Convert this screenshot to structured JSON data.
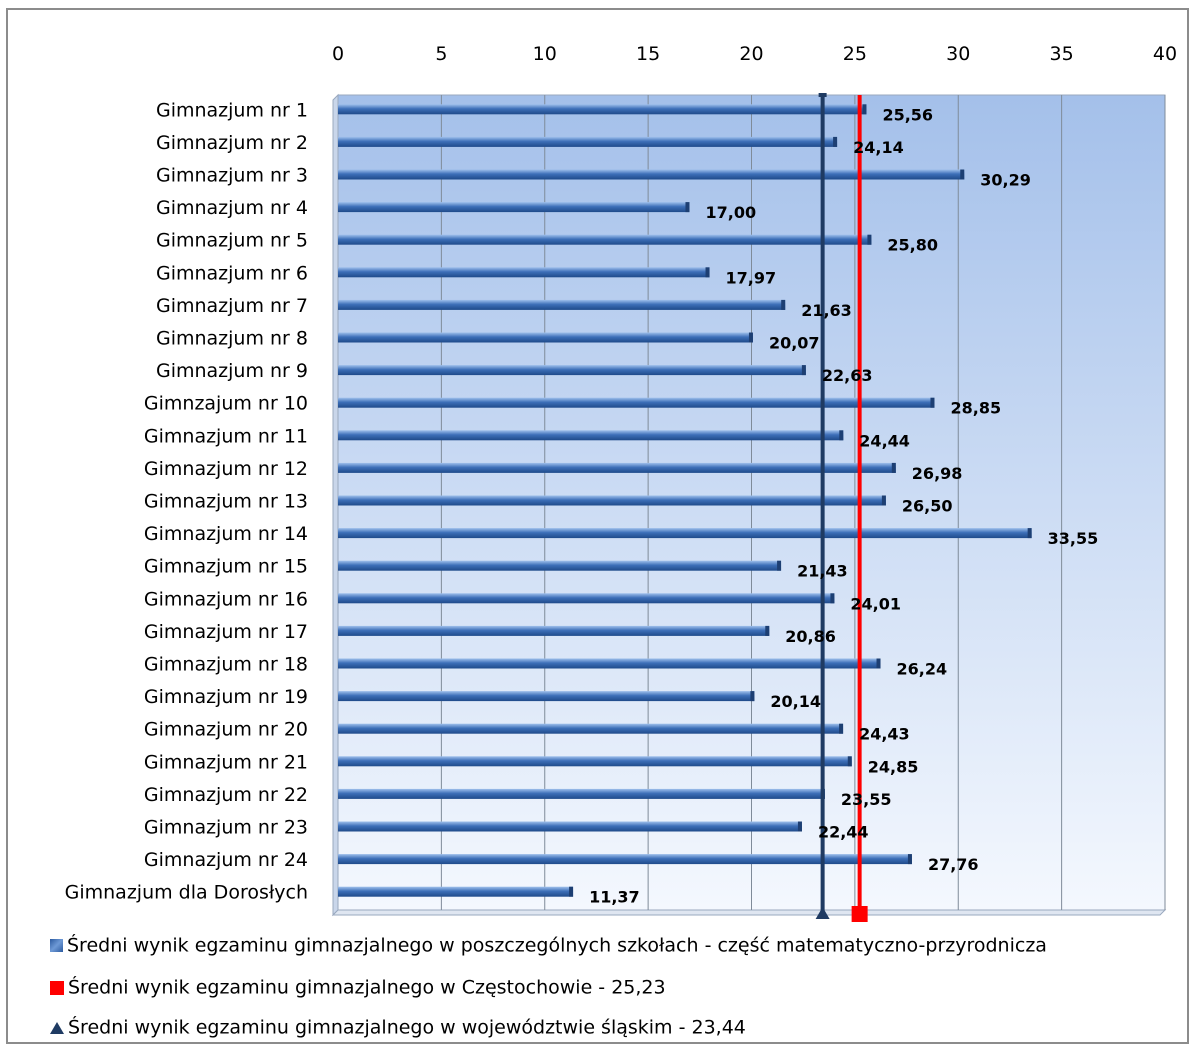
{
  "chart_data": {
    "type": "bar",
    "orientation": "horizontal",
    "categories": [
      "Gimnazjum nr 1",
      "Gimnazjum nr 2",
      "Gimnazjum nr 3",
      "Gimnazjum nr 4",
      "Gimnazjum nr 5",
      "Gimnazjum nr 6",
      "Gimnazjum nr 7",
      "Gimnazjum nr 8",
      "Gimnazjum nr 9",
      "Gimnzajum nr 10",
      "Gimnazjum nr 11",
      "Gimnazjum nr 12",
      "Gimnazjum nr 13",
      "Gimnazjum nr 14",
      "Gimnazjum nr 15",
      "Gimnazjum nr 16",
      "Gimnazjum nr 17",
      "Gimnazjum nr 18",
      "Gimnazjum nr 19",
      "Gimnazjum nr 20",
      "Gimnazjum nr 21",
      "Gimnazjum nr 22",
      "Gimnazjum nr 23",
      "Gimnazjum nr 24",
      "Gimnazjum dla Dorosłych"
    ],
    "values": [
      25.56,
      24.14,
      30.29,
      17.0,
      25.8,
      17.97,
      21.63,
      20.07,
      22.63,
      28.85,
      24.44,
      26.98,
      26.5,
      33.55,
      21.43,
      24.01,
      20.86,
      26.24,
      20.14,
      24.43,
      24.85,
      23.55,
      22.44,
      27.76,
      11.37
    ],
    "value_labels": [
      "25,56",
      "24,14",
      "30,29",
      "17,00",
      "25,80",
      "17,97",
      "21,63",
      "20,07",
      "22,63",
      "28,85",
      "24,44",
      "26,98",
      "26,50",
      "33,55",
      "21,43",
      "24,01",
      "20,86",
      "26,24",
      "20,14",
      "24,43",
      "24,85",
      "23,55",
      "22,44",
      "27,76",
      "11,37"
    ],
    "xlim": [
      0,
      40
    ],
    "xticks": [
      "0",
      "5",
      "10",
      "15",
      "20",
      "25",
      "30",
      "35",
      "40"
    ],
    "axis_position": "top",
    "grid": true,
    "reference_lines": [
      {
        "name": "Średni wynik egzaminu gimnazjalnego w Częstochowie - 25,23",
        "value": 25.23,
        "color": "#ff0000",
        "marker": "square"
      },
      {
        "name": "Średni wynik egzaminu gimnazjalnego w województwie śląskim -  23,44",
        "value": 23.44,
        "color": "#1f3b63",
        "marker": "triangle"
      }
    ],
    "series": [
      {
        "name": "Średni wynik egzaminu gimnazjalnego w poszczególnych szkołach - część matematyczno-przyrodnicza",
        "color": "#3a6db5"
      }
    ],
    "legend_position": "bottom"
  }
}
